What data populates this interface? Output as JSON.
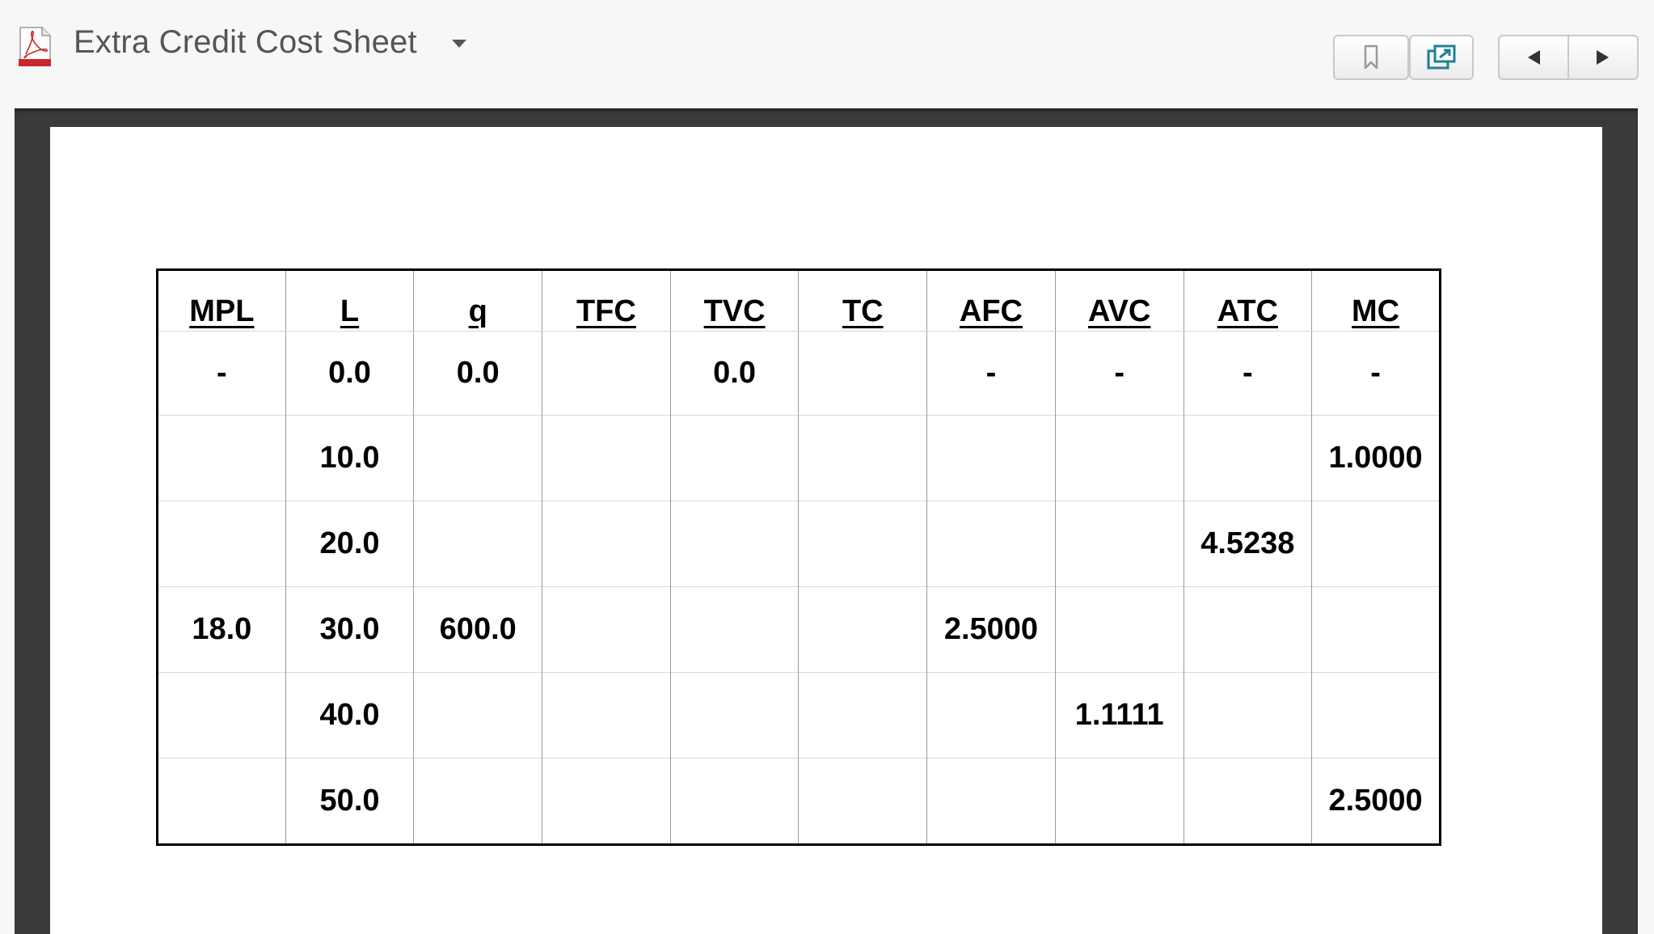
{
  "header": {
    "title": "Extra Credit Cost Sheet",
    "file_icon": "pdf-file-icon",
    "buttons": {
      "bookmark_icon": "bookmark-icon",
      "popout_icon": "popout-window-icon",
      "prev_icon": "triangle-left-icon",
      "next_icon": "triangle-right-icon"
    }
  },
  "table": {
    "columns": [
      "MPL",
      "L",
      "q",
      "TFC",
      "TVC",
      "TC",
      "AFC",
      "AVC",
      "ATC",
      "MC"
    ],
    "rows": [
      [
        "-",
        "0.0",
        "0.0",
        "",
        "0.0",
        "",
        "-",
        "-",
        "-",
        "-"
      ],
      [
        "",
        "10.0",
        "",
        "",
        "",
        "",
        "",
        "",
        "",
        "1.0000"
      ],
      [
        "",
        "20.0",
        "",
        "",
        "",
        "",
        "",
        "",
        "4.5238",
        ""
      ],
      [
        "18.0",
        "30.0",
        "600.0",
        "",
        "",
        "",
        "2.5000",
        "",
        "",
        ""
      ],
      [
        "",
        "40.0",
        "",
        "",
        "",
        "",
        "",
        "1.1111",
        "",
        ""
      ],
      [
        "",
        "50.0",
        "",
        "",
        "",
        "",
        "",
        "",
        "",
        "2.5000"
      ]
    ]
  },
  "colors": {
    "pdf_red": "#c8282b",
    "frame_dark": "#3a3a3a",
    "popout_teal": "#1f7f95"
  }
}
